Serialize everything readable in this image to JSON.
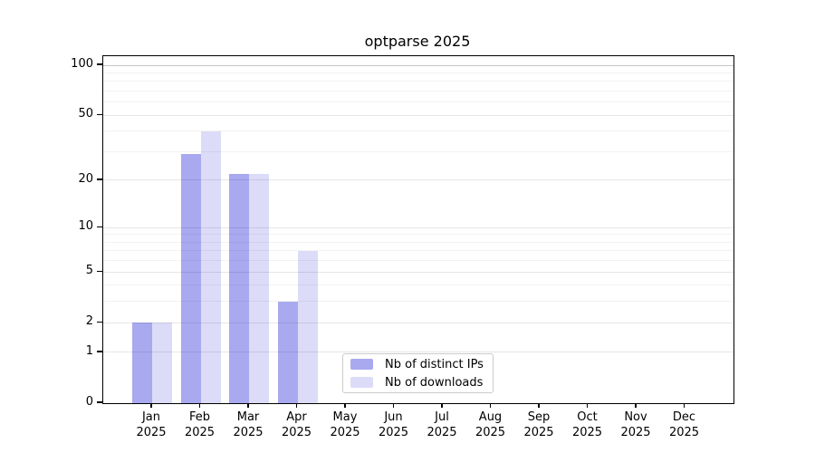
{
  "title": "optparse 2025",
  "chart_data": {
    "type": "bar",
    "categories": [
      "Jan",
      "Feb",
      "Mar",
      "Apr",
      "May",
      "Jun",
      "Jul",
      "Aug",
      "Sep",
      "Oct",
      "Nov",
      "Dec"
    ],
    "year": "2025",
    "series": [
      {
        "name": "Nb of distinct IPs",
        "color": "#a9a9f0",
        "values": [
          2,
          29,
          22,
          3,
          0,
          0,
          0,
          0,
          0,
          0,
          0,
          0
        ]
      },
      {
        "name": "Nb of downloads",
        "color": "#dcdcf8",
        "values": [
          2,
          40,
          22,
          7,
          0,
          0,
          0,
          0,
          0,
          0,
          0,
          0
        ]
      }
    ],
    "yscale": "log1p",
    "yticks_major": [
      0,
      1,
      2,
      5,
      10,
      20,
      50,
      100
    ],
    "yticks_minor": [
      3,
      4,
      6,
      7,
      8,
      9,
      30,
      40,
      60,
      70,
      80,
      90
    ],
    "ylim": [
      0,
      114
    ],
    "xlabel": "",
    "ylabel": "",
    "grid": "horizontal",
    "legend_position": "lower-center"
  },
  "colors": {
    "bar_ips": "#a9a9f0",
    "bar_downloads": "#dcdcf8",
    "grid_minor": "#f2f2f2",
    "grid_major": "#e6e6e6",
    "grid_top": "#c6c6c6",
    "axis": "#000000",
    "legend_border": "#cccccc"
  }
}
